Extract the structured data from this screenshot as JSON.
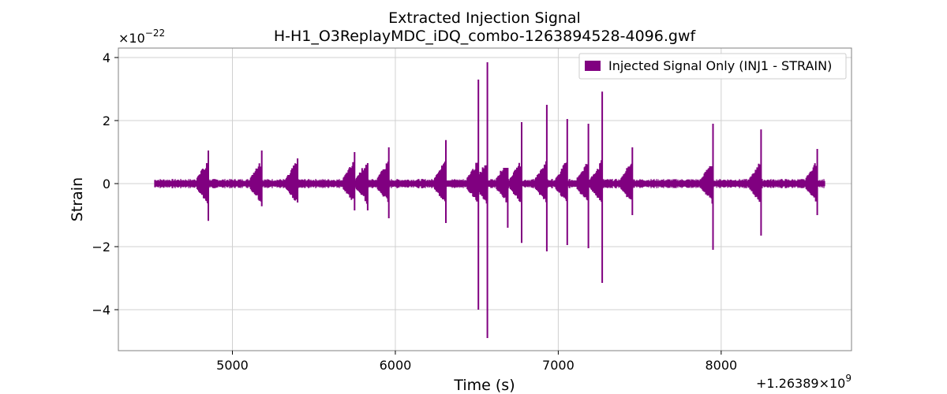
{
  "chart_data": {
    "type": "line",
    "title": "Extracted Injection Signal",
    "subtitle": "H-H1_O3ReplayMDC_iDQ_combo-1263894528-4096.gwf",
    "xlabel": "Time (s)",
    "ylabel": "Strain",
    "x_offset_label": "+1.26389×10",
    "x_offset_exponent": "9",
    "y_scale_label": "×10",
    "y_scale_exponent": "−22",
    "xlim": [
      4300,
      8800
    ],
    "ylim": [
      -5.3,
      4.3
    ],
    "x_ticks": [
      5000,
      6000,
      7000,
      8000
    ],
    "x_tick_labels": [
      "5000",
      "6000",
      "7000",
      "8000"
    ],
    "y_ticks": [
      -4,
      -2,
      0,
      2,
      4
    ],
    "y_tick_labels": [
      "−4",
      "−2",
      "0",
      "2",
      "4"
    ],
    "grid": true,
    "legend_position": "top-right",
    "series": [
      {
        "name": "Injected Signal Only (INJ1 - STRAIN)",
        "color": "#800080",
        "x_start": 4520,
        "x_end": 8640,
        "baseline_amplitude": 0.15,
        "glitches": [
          {
            "x": 4852,
            "y_max": 1.05,
            "y_min": -1.18
          },
          {
            "x": 5180,
            "y_max": 1.05,
            "y_min": -0.72
          },
          {
            "x": 5400,
            "y_max": 0.8,
            "y_min": -0.6
          },
          {
            "x": 5750,
            "y_max": 1.0,
            "y_min": -0.85
          },
          {
            "x": 5830,
            "y_max": 0.65,
            "y_min": -0.85
          },
          {
            "x": 5960,
            "y_max": 1.15,
            "y_min": -1.1
          },
          {
            "x": 6310,
            "y_max": 1.38,
            "y_min": -1.25
          },
          {
            "x": 6510,
            "y_max": 3.3,
            "y_min": -4.0
          },
          {
            "x": 6565,
            "y_max": 3.85,
            "y_min": -4.9
          },
          {
            "x": 6690,
            "y_max": 0.5,
            "y_min": -1.4
          },
          {
            "x": 6775,
            "y_max": 1.95,
            "y_min": -1.88
          },
          {
            "x": 6930,
            "y_max": 2.5,
            "y_min": -2.15
          },
          {
            "x": 7055,
            "y_max": 2.05,
            "y_min": -1.95
          },
          {
            "x": 7185,
            "y_max": 1.9,
            "y_min": -2.05
          },
          {
            "x": 7270,
            "y_max": 2.92,
            "y_min": -3.15
          },
          {
            "x": 7455,
            "y_max": 1.15,
            "y_min": -1.0
          },
          {
            "x": 7950,
            "y_max": 1.9,
            "y_min": -2.1
          },
          {
            "x": 8245,
            "y_max": 1.72,
            "y_min": -1.65
          },
          {
            "x": 8590,
            "y_max": 1.1,
            "y_min": -1.0
          }
        ]
      }
    ]
  }
}
